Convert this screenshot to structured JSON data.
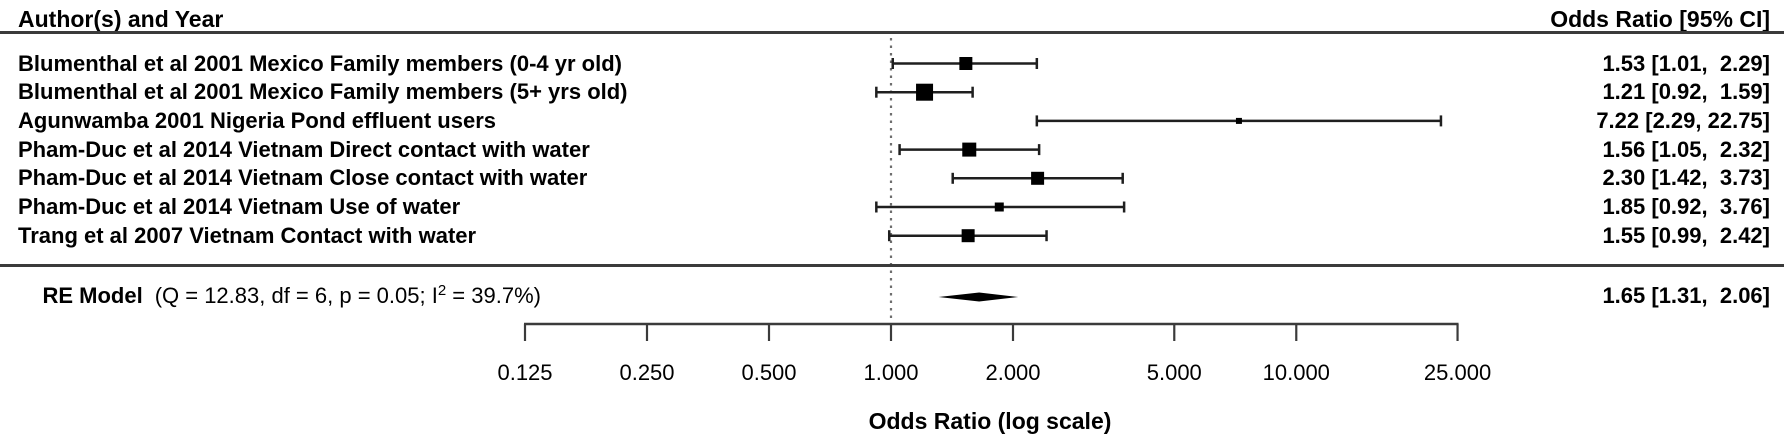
{
  "header": {
    "left_title": "Author(s) and Year",
    "right_title": "Odds Ratio [95% CI]"
  },
  "chart_data": {
    "type": "forest",
    "x_scale": "log",
    "title": "",
    "xlabel": "Odds Ratio (log scale)",
    "axis": {
      "label": "Odds Ratio (log scale)",
      "range": [
        0.125,
        25.0
      ],
      "ticks": [
        0.125,
        0.25,
        0.5,
        1.0,
        2.0,
        5.0,
        10.0,
        25.0
      ],
      "tick_labels": [
        "0.125",
        "0.250",
        "0.500",
        "1.000",
        "2.000",
        "5.000",
        "10.000",
        "25.000"
      ],
      "refline": 1.0
    },
    "studies": [
      {
        "label": "Blumenthal et al 2001 Mexico Family members (0-4 yr old)",
        "or": 1.53,
        "ci_low": 1.01,
        "ci_high": 2.29,
        "display": "1.53 [1.01,  2.29]",
        "marker_size": 13
      },
      {
        "label": "Blumenthal et al 2001 Mexico Family members (5+ yrs old)",
        "or": 1.21,
        "ci_low": 0.92,
        "ci_high": 1.59,
        "display": "1.21 [0.92,  1.59]",
        "marker_size": 17
      },
      {
        "label": "Agunwamba 2001 Nigeria Pond effluent users",
        "or": 7.22,
        "ci_low": 2.29,
        "ci_high": 22.75,
        "display": "7.22 [2.29, 22.75]",
        "marker_size": 6
      },
      {
        "label": "Pham-Duc et al 2014 Vietnam Direct contact with water",
        "or": 1.56,
        "ci_low": 1.05,
        "ci_high": 2.32,
        "display": "1.56 [1.05,  2.32]",
        "marker_size": 14
      },
      {
        "label": "Pham-Duc et al 2014 Vietnam Close contact with water",
        "or": 2.3,
        "ci_low": 1.42,
        "ci_high": 3.73,
        "display": "2.30 [1.42,  3.73]",
        "marker_size": 13
      },
      {
        "label": "Pham-Duc et al 2014 Vietnam Use of water",
        "or": 1.85,
        "ci_low": 0.92,
        "ci_high": 3.76,
        "display": "1.85 [0.92,  3.76]",
        "marker_size": 9
      },
      {
        "label": "Trang et al 2007 Vietnam Contact with water",
        "or": 1.55,
        "ci_low": 0.99,
        "ci_high": 2.42,
        "display": "1.55 [0.99,  2.42]",
        "marker_size": 13
      }
    ],
    "summary": {
      "label": "RE Model",
      "stats_prefix": "(Q = 12.83, df = 6, p = 0.05; I",
      "stats_sup": "2",
      "stats_suffix": " = 39.7%)",
      "or": 1.65,
      "ci_low": 1.31,
      "ci_high": 2.06,
      "display": "1.65 [1.31,  2.06]",
      "heterogeneity": {
        "Q": 12.83,
        "df": 6,
        "p": 0.05,
        "I2_percent": 39.7
      }
    }
  },
  "colors": {
    "text": "#000000",
    "rule": "#3b3b3b",
    "marker": "#000000",
    "whisker": "#1f1f1f",
    "refline": "#6e6e6e"
  }
}
